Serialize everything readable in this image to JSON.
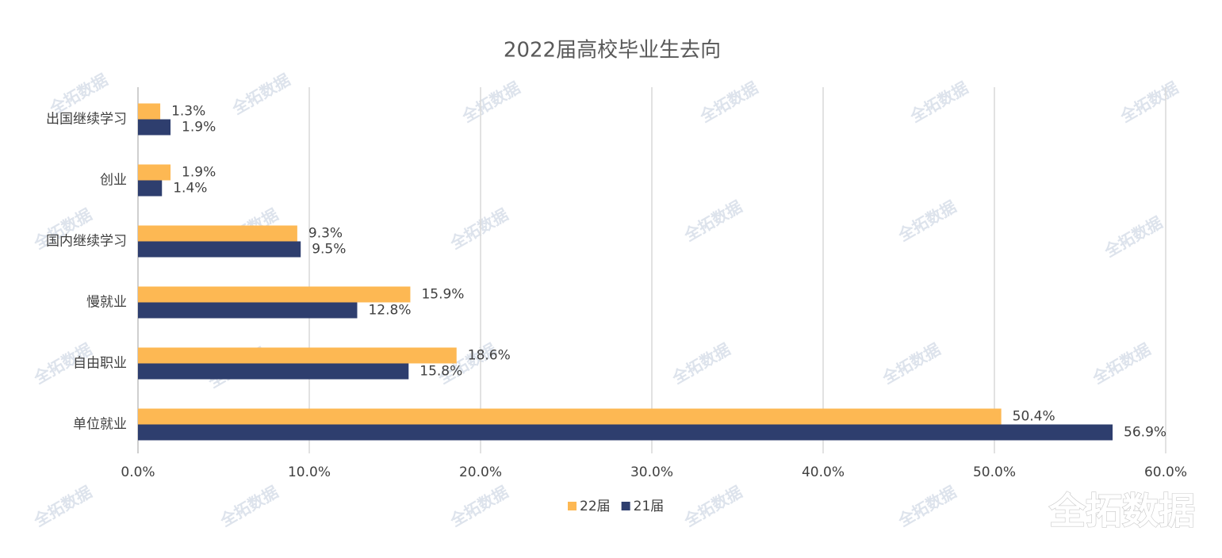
{
  "chart_data": {
    "type": "hbar",
    "title": "2022届高校毕业生去向",
    "categories": [
      "出国继续学习",
      "创业",
      "国内继续学习",
      "慢就业",
      "自由职业",
      "单位就业"
    ],
    "series": [
      {
        "name": "22届",
        "color": "#fdb853",
        "values": [
          1.3,
          1.9,
          9.3,
          15.9,
          18.6,
          50.4
        ],
        "value_labels": [
          "1.3%",
          "1.9%",
          "9.3%",
          "15.9%",
          "18.6%",
          "50.4%"
        ]
      },
      {
        "name": "21届",
        "color": "#2e3e6e",
        "values": [
          1.9,
          1.4,
          9.5,
          12.8,
          15.8,
          56.9
        ],
        "value_labels": [
          "1.9%",
          "1.4%",
          "9.5%",
          "12.8%",
          "15.8%",
          "56.9%"
        ]
      }
    ],
    "xlim": [
      0,
      60
    ],
    "xticks": [
      {
        "value": 0,
        "label": "0.0%"
      },
      {
        "value": 10,
        "label": "10.0%"
      },
      {
        "value": 20,
        "label": "20.0%"
      },
      {
        "value": 30,
        "label": "30.0%"
      },
      {
        "value": 40,
        "label": "40.0%"
      },
      {
        "value": 50,
        "label": "50.0%"
      },
      {
        "value": 60,
        "label": "60.0%"
      }
    ],
    "grid": true,
    "legend": "bottom"
  },
  "watermark": "全拓数据",
  "logo": "全拓数据"
}
